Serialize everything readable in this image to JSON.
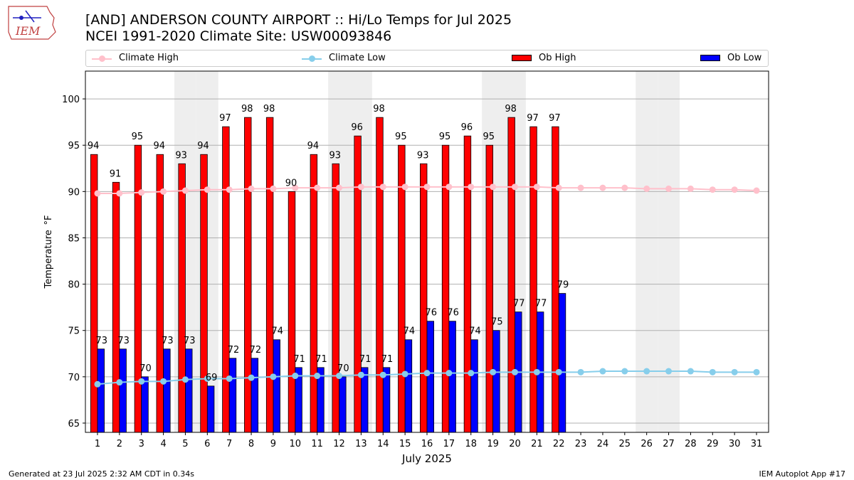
{
  "header": {
    "title_line1": "[AND] ANDERSON COUNTY AIRPORT :: Hi/Lo Temps for Jul 2025",
    "title_line2": "NCEI 1991-2020 Climate Site: USW00093846"
  },
  "logo": {
    "text": "IEM",
    "icon": "iem-iowa-logo"
  },
  "footer": {
    "generated": "Generated at 23 Jul 2025 2:32 AM CDT in 0.34s",
    "app": "IEM Autoplot App #17"
  },
  "colors": {
    "ob_high": "#ff0000",
    "ob_low": "#0000ff",
    "climate_high": "#ffc0cb",
    "climate_low": "#87ceeb",
    "weekend_shade": "#eeeeee",
    "grid": "#b0b0b0"
  },
  "chart_data": {
    "type": "bar",
    "title": "[AND] ANDERSON COUNTY AIRPORT :: Hi/Lo Temps for Jul 2025",
    "subtitle": "NCEI 1991-2020 Climate Site: USW00093846",
    "xlabel": "July 2025",
    "ylabel": "Temperature  °F",
    "ylim": [
      64,
      103
    ],
    "yticks": [
      65,
      70,
      75,
      80,
      85,
      90,
      95,
      100
    ],
    "days": [
      1,
      2,
      3,
      4,
      5,
      6,
      7,
      8,
      9,
      10,
      11,
      12,
      13,
      14,
      15,
      16,
      17,
      18,
      19,
      20,
      21,
      22,
      23,
      24,
      25,
      26,
      27,
      28,
      29,
      30,
      31
    ],
    "shaded_days": [
      5,
      6,
      12,
      13,
      19,
      20,
      26,
      27
    ],
    "grid": true,
    "legend_position": "top",
    "legend": [
      "Climate High",
      "Climate Low",
      "Ob High",
      "Ob Low"
    ],
    "series": [
      {
        "name": "Ob High",
        "kind": "bar",
        "values": [
          94,
          91,
          95,
          94,
          93,
          94,
          97,
          98,
          98,
          90,
          94,
          93,
          96,
          98,
          95,
          93,
          95,
          96,
          95,
          98,
          97,
          97
        ]
      },
      {
        "name": "Ob Low",
        "kind": "bar",
        "values": [
          73,
          73,
          70,
          73,
          73,
          69,
          72,
          72,
          74,
          71,
          71,
          70,
          71,
          71,
          74,
          76,
          76,
          74,
          75,
          77,
          77,
          79
        ]
      },
      {
        "name": "Climate High",
        "kind": "line",
        "values": [
          89.8,
          89.8,
          89.9,
          90.0,
          90.1,
          90.2,
          90.2,
          90.3,
          90.3,
          90.4,
          90.4,
          90.4,
          90.5,
          90.5,
          90.5,
          90.5,
          90.5,
          90.5,
          90.5,
          90.5,
          90.5,
          90.4,
          90.4,
          90.4,
          90.4,
          90.3,
          90.3,
          90.3,
          90.2,
          90.2,
          90.1
        ]
      },
      {
        "name": "Climate Low",
        "kind": "line",
        "values": [
          69.2,
          69.4,
          69.5,
          69.5,
          69.7,
          69.8,
          69.8,
          69.9,
          70.0,
          70.1,
          70.1,
          70.1,
          70.2,
          70.2,
          70.3,
          70.4,
          70.4,
          70.4,
          70.5,
          70.5,
          70.5,
          70.5,
          70.5,
          70.6,
          70.6,
          70.6,
          70.6,
          70.6,
          70.5,
          70.5,
          70.5
        ]
      }
    ]
  }
}
